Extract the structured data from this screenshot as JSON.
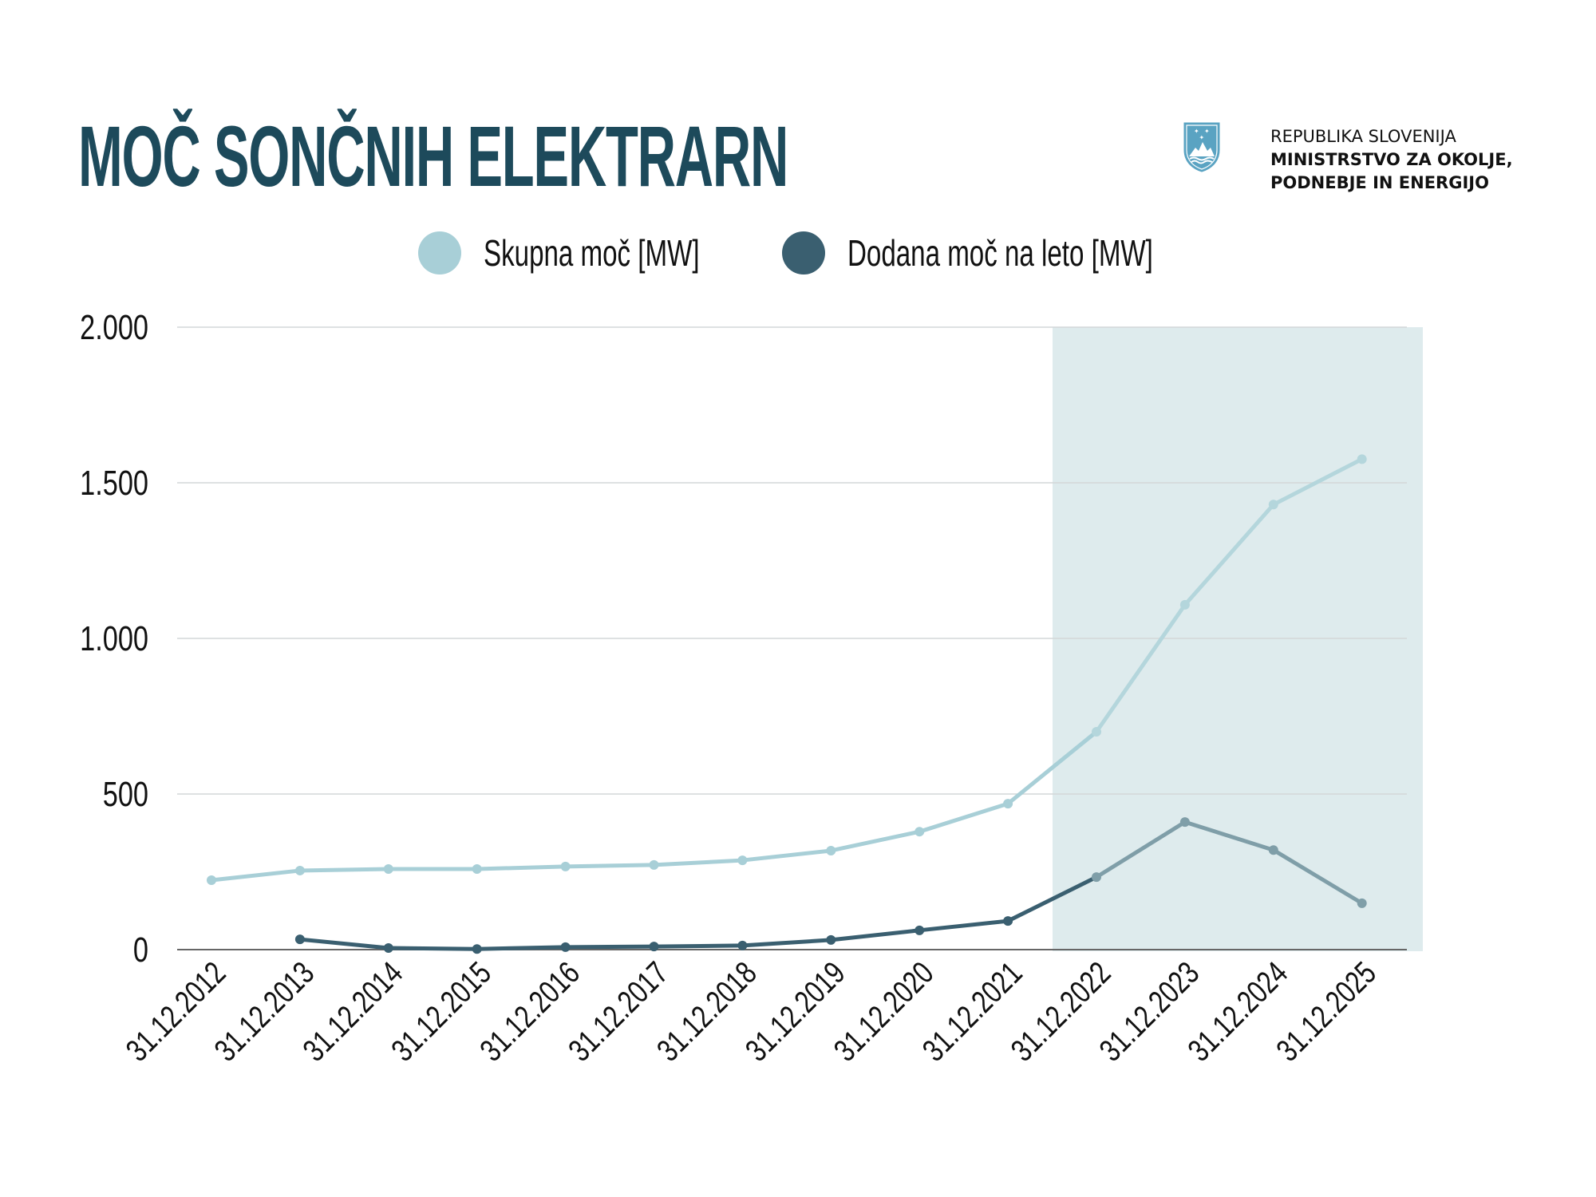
{
  "header": {
    "title": "MOČ SONČNIH ELEKTRARN",
    "org_line1": "REPUBLIKA SLOVENIJA",
    "org_line2": "MINISTRSTVO ZA OKOLJE,",
    "org_line3": "PODNEBJE IN ENERGIJO",
    "logo_icon": "slovenia-coat-of-arms-icon"
  },
  "colors": {
    "title": "#1d4a5b",
    "skupna": "#a8cfd7",
    "dodana": "#3a5f70",
    "dodana_projected": "#7f9ea8",
    "shade": "#deebed",
    "grid": "#d3d7d8",
    "axis": "#666666"
  },
  "chart_data": {
    "type": "line",
    "title": "MOČ SONČNIH ELEKTRARN",
    "xlabel": "",
    "ylabel": "",
    "ylim": [
      0,
      2000
    ],
    "yticks": [
      0,
      500,
      1000,
      1500,
      2000
    ],
    "ytick_labels": [
      "0",
      "500",
      "1.000",
      "1.500",
      "2.000"
    ],
    "grid": true,
    "legend_position": "top-center",
    "categories": [
      "31.12.2012",
      "31.12.2013",
      "31.12.2014",
      "31.12.2015",
      "31.12.2016",
      "31.12.2017",
      "31.12.2018",
      "31.12.2019",
      "31.12.2020",
      "31.12.2021",
      "31.12.2022",
      "31.12.2023",
      "31.12.2024",
      "31.12.2025"
    ],
    "series": [
      {
        "name": "Skupna moč [MW]",
        "values": [
          223,
          254,
          259,
          259,
          267,
          272,
          287,
          318,
          379,
          469,
          700,
          1108,
          1430,
          1576
        ]
      },
      {
        "name": "Dodana moč na leto [MW]",
        "values": [
          null,
          33,
          5,
          2,
          8,
          10,
          13,
          31,
          62,
          92,
          233,
          410,
          320,
          149
        ]
      }
    ],
    "highlight_region": {
      "from_category": "31.12.2022",
      "to_category": "31.12.2025",
      "note": "shaded projection period"
    }
  }
}
